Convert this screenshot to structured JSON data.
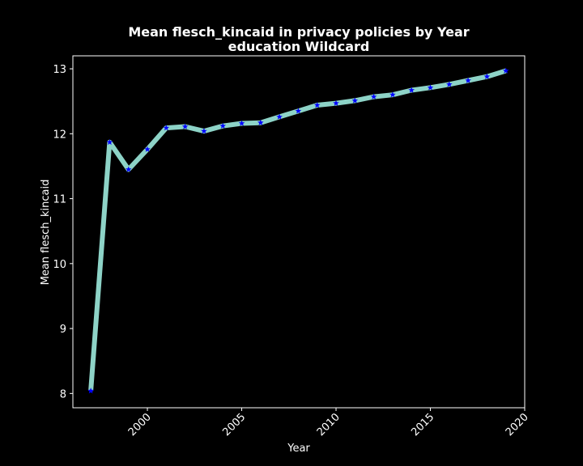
{
  "chart_data": {
    "type": "line",
    "title_line1": "Mean flesch_kincaid in privacy policies by Year",
    "title_line2": "education Wildcard",
    "xlabel": "Year",
    "ylabel": "Mean flesch_kincaid",
    "xlim": [
      1996.05,
      2020.0
    ],
    "ylim": [
      7.78,
      13.2
    ],
    "xticks": [
      2000,
      2005,
      2010,
      2015,
      2020
    ],
    "yticks": [
      8,
      9,
      10,
      11,
      12,
      13
    ],
    "grid": false,
    "line_color": "#8dd3c7",
    "marker_color": "#0000ff",
    "marker": "star",
    "series": [
      {
        "x": [
          1997,
          1998,
          1999,
          2000,
          2001,
          2002,
          2003,
          2004,
          2005,
          2006,
          2007,
          2008,
          2009,
          2010,
          2011,
          2012,
          2013,
          2014,
          2015,
          2016,
          2017,
          2018,
          2019
        ],
        "values": [
          8.04,
          11.87,
          11.45,
          11.76,
          12.09,
          12.11,
          12.04,
          12.12,
          12.16,
          12.17,
          12.26,
          12.35,
          12.44,
          12.47,
          12.51,
          12.57,
          12.6,
          12.67,
          12.71,
          12.76,
          12.82,
          12.88,
          12.97
        ]
      }
    ]
  }
}
